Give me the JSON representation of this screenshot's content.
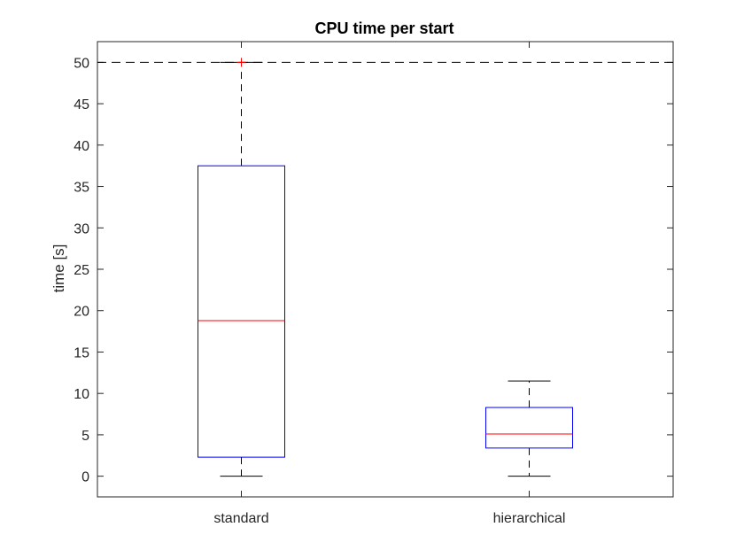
{
  "chart_data": {
    "type": "box",
    "title": "CPU time per start",
    "xlabel": "",
    "ylabel": "time [s]",
    "ylim": [
      -2.5,
      52.5
    ],
    "yticks": [
      0,
      5,
      10,
      15,
      20,
      25,
      30,
      35,
      40,
      45,
      50
    ],
    "categories": [
      "standard",
      "hierarchical"
    ],
    "boxes": [
      {
        "category": "standard",
        "whisker_low": 0.0,
        "q1": 2.3,
        "median": 18.8,
        "q3": 37.5,
        "whisker_high": 50.0,
        "outliers": [
          50.0
        ]
      },
      {
        "category": "hierarchical",
        "whisker_low": 0.0,
        "q1": 3.4,
        "median": 5.1,
        "q3": 8.3,
        "whisker_high": 11.5,
        "outliers": []
      }
    ],
    "reference_line": {
      "y": 50,
      "style": "dashed"
    },
    "grid": false,
    "colors": {
      "box": "#0000ff",
      "median": "#ff0000",
      "whisker": "#000000",
      "outlier": "#ff0000",
      "axes": "#262626"
    }
  }
}
